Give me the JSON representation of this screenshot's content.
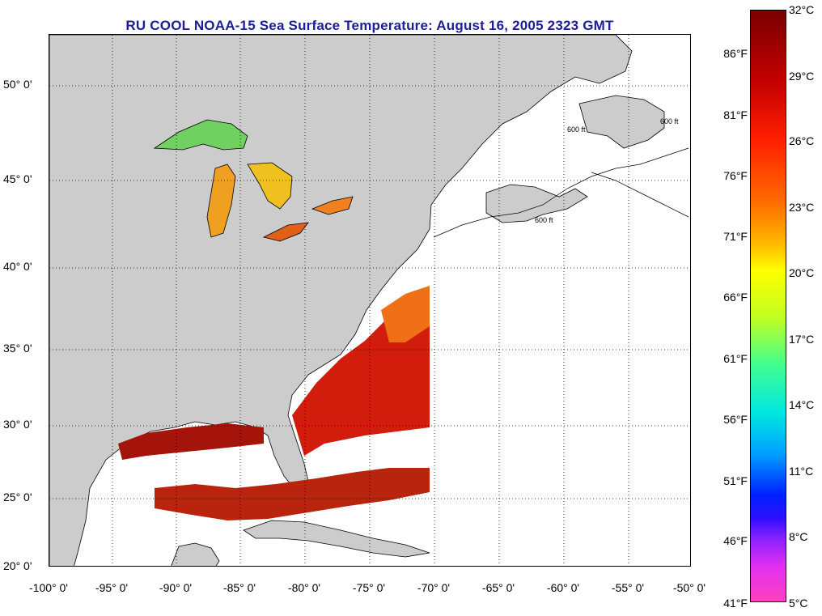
{
  "title": "RU COOL  NOAA-15  Sea Surface Temperature:  August 16, 2005 2323 GMT",
  "map": {
    "lon_range": [
      -100,
      -50
    ],
    "lat_range": [
      20,
      52
    ],
    "lat_labels": [
      {
        "value": 50,
        "text": "50° 0'"
      },
      {
        "value": 45,
        "text": "45° 0'"
      },
      {
        "value": 40,
        "text": "40° 0'"
      },
      {
        "value": 35,
        "text": "35° 0'"
      },
      {
        "value": 30,
        "text": "30° 0'"
      },
      {
        "value": 25,
        "text": "25° 0'"
      },
      {
        "value": 20,
        "text": "20° 0'"
      }
    ],
    "lon_labels": [
      {
        "value": -100,
        "text": "-100° 0'"
      },
      {
        "value": -95,
        "text": "-95° 0'"
      },
      {
        "value": -90,
        "text": "-90° 0'"
      },
      {
        "value": -85,
        "text": "-85° 0'"
      },
      {
        "value": -80,
        "text": "-80° 0'"
      },
      {
        "value": -75,
        "text": "-75° 0'"
      },
      {
        "value": -70,
        "text": "-70° 0'"
      },
      {
        "value": -65,
        "text": "-65° 0'"
      },
      {
        "value": -60,
        "text": "-60° 0'"
      },
      {
        "value": -55,
        "text": "-55° 0'"
      },
      {
        "value": -50,
        "text": "-50° 0'"
      }
    ],
    "contour_label": "600 ft",
    "colors": {
      "land": "#cccccc",
      "ocean": "#ffffff",
      "title": "#1d1d9a"
    }
  },
  "colorbar": {
    "celsius": [
      {
        "value": 32,
        "text": "32°C"
      },
      {
        "value": 29,
        "text": "29°C"
      },
      {
        "value": 26,
        "text": "26°C"
      },
      {
        "value": 23,
        "text": "23°C"
      },
      {
        "value": 20,
        "text": "20°C"
      },
      {
        "value": 17,
        "text": "17°C"
      },
      {
        "value": 14,
        "text": "14°C"
      },
      {
        "value": 11,
        "text": "11°C"
      },
      {
        "value": 8,
        "text": "8°C"
      },
      {
        "value": 5,
        "text": "5°C"
      }
    ],
    "fahrenheit": [
      {
        "value": 86,
        "text": "86°F"
      },
      {
        "value": 81,
        "text": "81°F"
      },
      {
        "value": 76,
        "text": "76°F"
      },
      {
        "value": 71,
        "text": "71°F"
      },
      {
        "value": 66,
        "text": "66°F"
      },
      {
        "value": 61,
        "text": "61°F"
      },
      {
        "value": 56,
        "text": "56°F"
      },
      {
        "value": 51,
        "text": "51°F"
      },
      {
        "value": 46,
        "text": "46°F"
      },
      {
        "value": 41,
        "text": "41°F"
      }
    ]
  }
}
